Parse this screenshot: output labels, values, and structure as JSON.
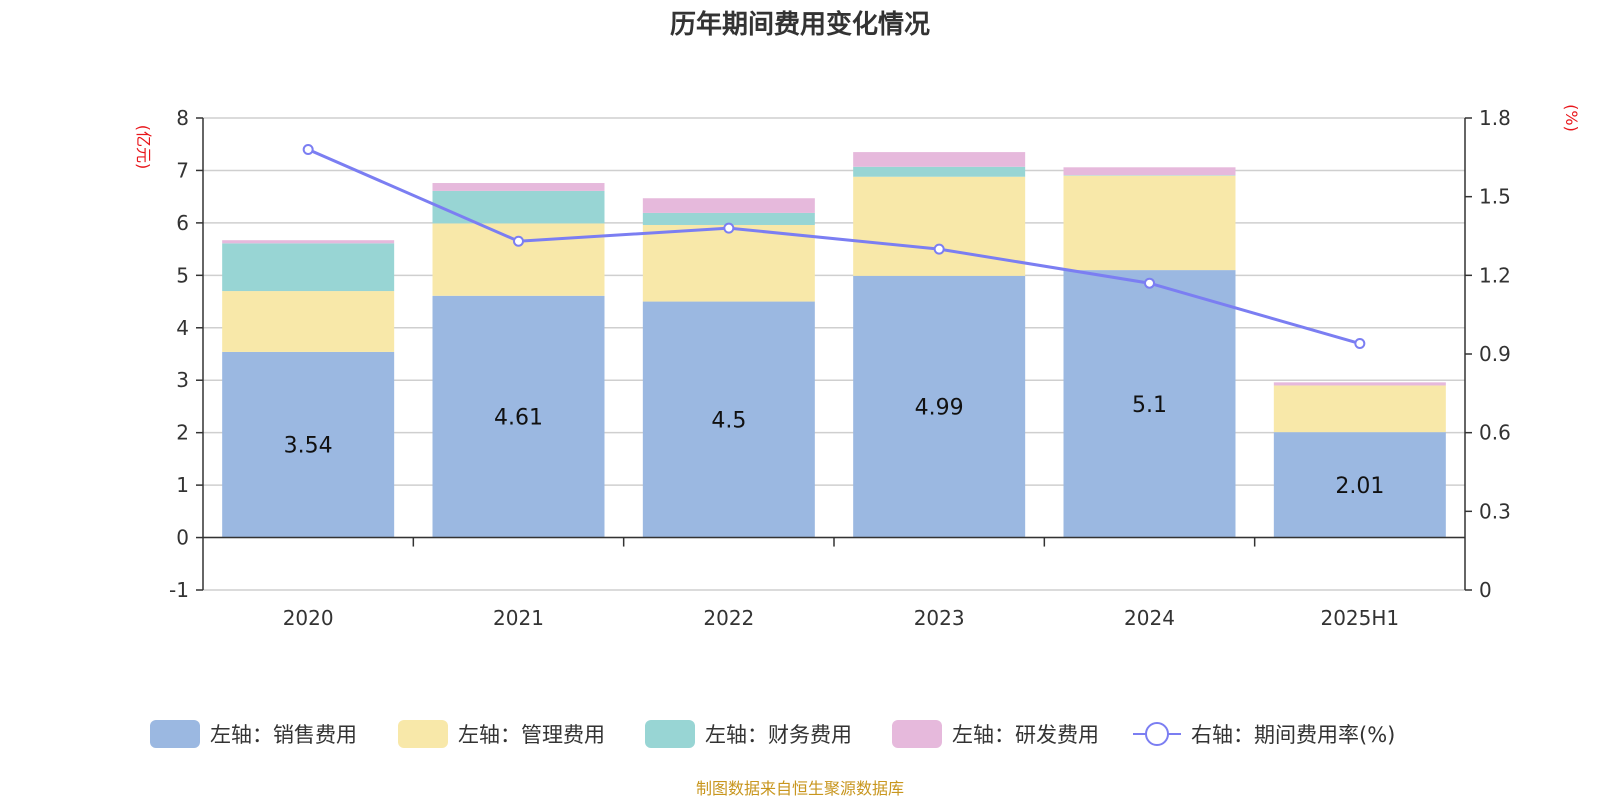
{
  "chart_data": {
    "type": "bar",
    "stacked": true,
    "title": "历年期间费用变化情况",
    "categories": [
      "2020",
      "2021",
      "2022",
      "2023",
      "2024",
      "2025H1"
    ],
    "left_axis": {
      "unit_label": "(亿元)",
      "ylim": [
        -1,
        8
      ],
      "ticks": [
        "-1",
        "0",
        "1",
        "2",
        "3",
        "4",
        "5",
        "6",
        "7",
        "8"
      ]
    },
    "right_axis": {
      "unit_label": "(%)",
      "ylim": [
        0,
        1.8
      ],
      "ticks": [
        "0",
        "0.3",
        "0.6",
        "0.9",
        "1.2",
        "1.5",
        "1.8"
      ]
    },
    "series": [
      {
        "name": "左轴：销售费用",
        "kind": "bar",
        "axis": "left",
        "color": "#9bb8e1",
        "values": [
          3.54,
          4.61,
          4.5,
          4.99,
          5.1,
          2.01
        ],
        "labels": [
          "3.54",
          "4.61",
          "4.5",
          "4.99",
          "5.1",
          "2.01"
        ]
      },
      {
        "name": "左轴：管理费用",
        "kind": "bar",
        "axis": "left",
        "color": "#f8e8a9",
        "values": [
          1.16,
          1.38,
          1.46,
          1.89,
          1.8,
          0.89
        ]
      },
      {
        "name": "左轴：财务费用",
        "kind": "bar",
        "axis": "left",
        "color": "#98d5d4",
        "values": [
          0.91,
          0.62,
          0.23,
          0.19,
          0.01,
          -0.01
        ]
      },
      {
        "name": "左轴：研发费用",
        "kind": "bar",
        "axis": "left",
        "color": "#e6b9dc",
        "values": [
          0.06,
          0.15,
          0.28,
          0.28,
          0.15,
          0.06
        ]
      },
      {
        "name": "右轴：期间费用率(%)",
        "kind": "line",
        "axis": "right",
        "color": "#7b7ef2",
        "values": [
          1.68,
          1.33,
          1.38,
          1.3,
          1.17,
          0.94
        ]
      }
    ],
    "grid": true,
    "legend_position": "bottom"
  },
  "footer": {
    "source": "制图数据来自恒生聚源数据库"
  }
}
